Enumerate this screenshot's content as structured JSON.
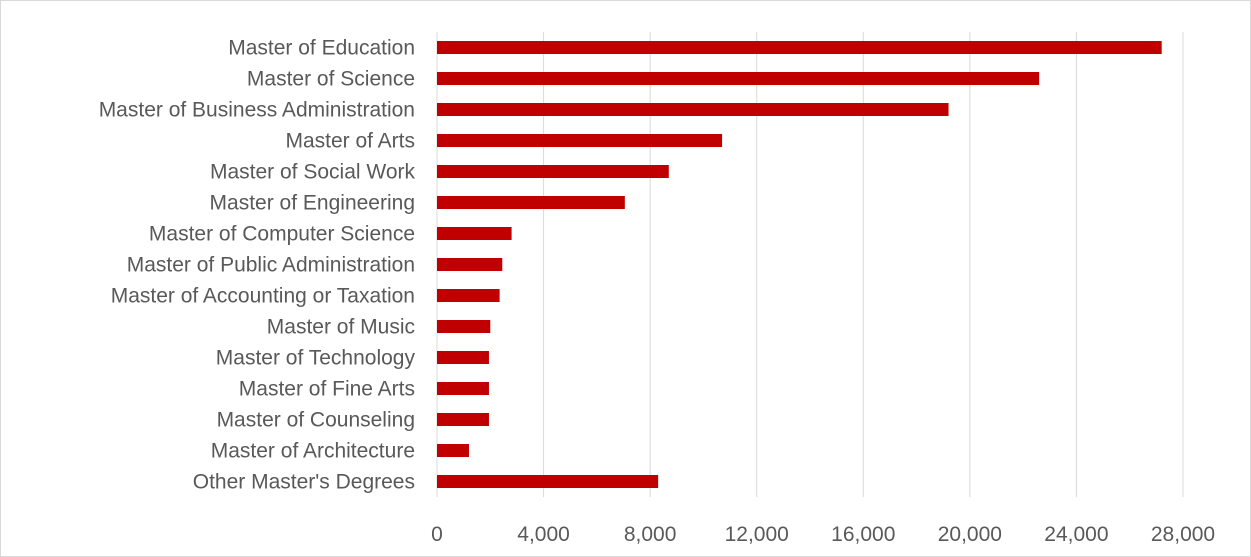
{
  "chart_data": {
    "type": "bar",
    "orientation": "horizontal",
    "title": "",
    "xlabel": "",
    "ylabel": "",
    "categories": [
      "Master of Education",
      "Master of Science",
      "Master of Business Administration",
      "Master of Arts",
      "Master of Social Work",
      "Master of Engineering",
      "Master of Computer Science",
      "Master of Public Administration",
      "Master of Accounting or Taxation",
      "Master of Music",
      "Master of Technology",
      "Master of Fine Arts",
      "Master of Counseling",
      "Master of Architecture",
      "Other Master's Degrees"
    ],
    "values": [
      27200,
      22600,
      19200,
      10700,
      8700,
      7050,
      2800,
      2450,
      2350,
      2000,
      1950,
      1950,
      1950,
      1200,
      8300
    ],
    "xlim": [
      0,
      28000
    ],
    "x_ticks": [
      0,
      4000,
      8000,
      12000,
      16000,
      20000,
      24000,
      28000
    ],
    "x_tick_labels": [
      "0",
      "4,000",
      "8,000",
      "12,000",
      "16,000",
      "20,000",
      "24,000",
      "28,000"
    ],
    "gridlines": "vertical",
    "legend": "none",
    "bar_color": "#c00000",
    "grid_color": "#d9d9d9",
    "label_color": "#595959"
  }
}
